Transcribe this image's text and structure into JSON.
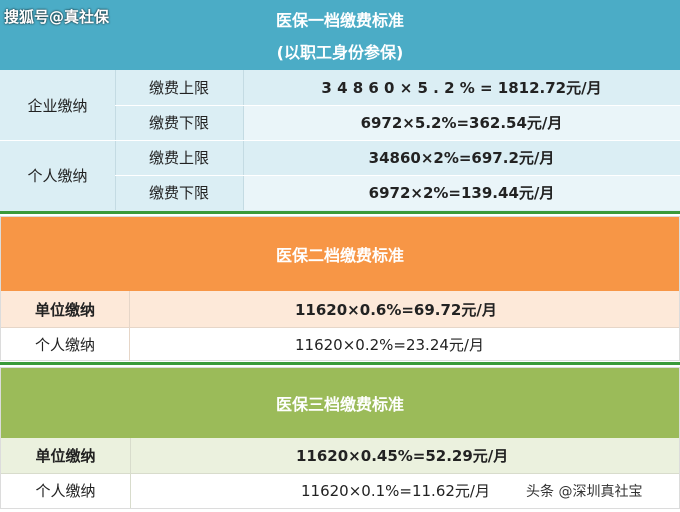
{
  "watermark": "搜狐号@真社保",
  "credit": "头条 @深圳真社宝",
  "colors": {
    "tier1": "#4bacc6",
    "tier2": "#f79646",
    "tier3": "#9bbb59"
  },
  "tier1": {
    "title": "医保一档缴费标准",
    "subtitle": "(以职工身份参保)",
    "groups": [
      {
        "label": "企业缴纳",
        "rows": [
          {
            "label": "缴费上限",
            "value": "3 4 8 6 0 × 5 . 2 % = 1812.72元/月"
          },
          {
            "label": "缴费下限",
            "value": "6972×5.2%=362.54元/月"
          }
        ]
      },
      {
        "label": "个人缴纳",
        "rows": [
          {
            "label": "缴费上限",
            "value": "34860×2%=697.2元/月"
          },
          {
            "label": "缴费下限",
            "value": "6972×2%=139.44元/月"
          }
        ]
      }
    ]
  },
  "tier2": {
    "title": "医保二档缴费标准",
    "rows": [
      {
        "label": "单位缴纳",
        "value": "11620×0.6%=69.72元/月"
      },
      {
        "label": "个人缴纳",
        "value": "11620×0.2%=23.24元/月"
      }
    ]
  },
  "tier3": {
    "title": "医保三档缴费标准",
    "rows": [
      {
        "label": "单位缴纳",
        "value": "11620×0.45%=52.29元/月"
      },
      {
        "label": "个人缴纳",
        "value": "11620×0.1%=11.62元/月"
      }
    ]
  }
}
